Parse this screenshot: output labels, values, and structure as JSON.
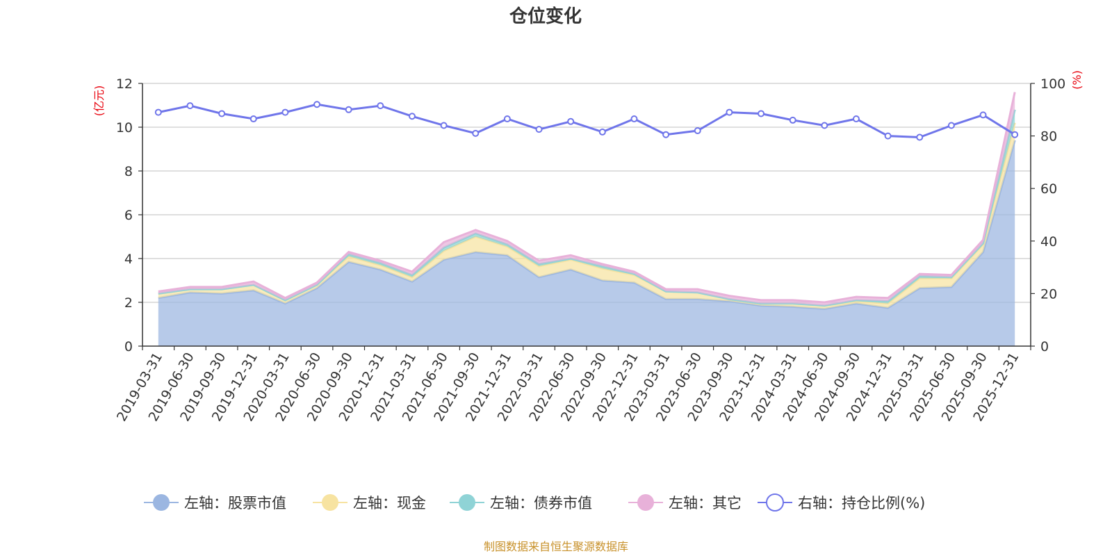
{
  "chart_data": {
    "type": "area",
    "title": "仓位变化",
    "left_axis": {
      "unit": "(亿元)",
      "ylim": [
        0,
        12
      ],
      "ticks": [
        0,
        2,
        4,
        6,
        8,
        10,
        12
      ]
    },
    "right_axis": {
      "unit": "(%)",
      "ylim": [
        0,
        100
      ],
      "ticks": [
        0,
        20,
        40,
        60,
        80,
        100
      ]
    },
    "categories": [
      "2019-03-31",
      "2019-06-30",
      "2019-09-30",
      "2019-12-31",
      "2020-03-31",
      "2020-06-30",
      "2020-09-30",
      "2020-12-31",
      "2021-03-31",
      "2021-06-30",
      "2021-09-30",
      "2021-12-31",
      "2022-03-31",
      "2022-06-30",
      "2022-09-30",
      "2022-12-31",
      "2023-03-31",
      "2023-06-30",
      "2023-09-30",
      "2023-12-31",
      "2024-03-31",
      "2024-06-30",
      "2024-09-30",
      "2024-12-31",
      "2025-03-31",
      "2025-06-30",
      "2025-09-30",
      "2025-12-31"
    ],
    "series": [
      {
        "name": "左轴：股票市值",
        "axis": "left",
        "stack": true,
        "color": "#9bb6e1",
        "values": [
          2.2,
          2.45,
          2.4,
          2.55,
          1.95,
          2.65,
          3.85,
          3.5,
          2.95,
          3.95,
          4.3,
          4.15,
          3.15,
          3.5,
          3.0,
          2.9,
          2.15,
          2.15,
          2.05,
          1.85,
          1.8,
          1.7,
          1.95,
          1.75,
          2.65,
          2.7,
          4.3,
          9.4
        ]
      },
      {
        "name": "左轴：现金",
        "axis": "left",
        "stack": true,
        "color": "#f7e3a1",
        "values": [
          0.2,
          0.15,
          0.2,
          0.25,
          0.15,
          0.15,
          0.25,
          0.2,
          0.2,
          0.4,
          0.7,
          0.4,
          0.5,
          0.45,
          0.55,
          0.35,
          0.35,
          0.3,
          0.1,
          0.1,
          0.15,
          0.15,
          0.1,
          0.2,
          0.45,
          0.4,
          0.35,
          0.8
        ]
      },
      {
        "name": "左轴：债券市值",
        "axis": "left",
        "stack": true,
        "color": "#8fd3d6",
        "values": [
          0.0,
          0.0,
          0.0,
          0.0,
          0.0,
          0.0,
          0.1,
          0.1,
          0.1,
          0.15,
          0.15,
          0.1,
          0.1,
          0.05,
          0.1,
          0.05,
          0.0,
          0.0,
          0.0,
          0.0,
          0.0,
          0.0,
          0.05,
          0.1,
          0.1,
          0.05,
          0.05,
          0.6
        ]
      },
      {
        "name": "左轴：其它",
        "axis": "left",
        "stack": true,
        "color": "#e8b1d9",
        "values": [
          0.1,
          0.1,
          0.1,
          0.15,
          0.1,
          0.1,
          0.1,
          0.1,
          0.15,
          0.25,
          0.15,
          0.15,
          0.15,
          0.15,
          0.1,
          0.1,
          0.1,
          0.15,
          0.15,
          0.15,
          0.15,
          0.15,
          0.15,
          0.15,
          0.1,
          0.1,
          0.15,
          0.8
        ]
      },
      {
        "name": "右轴：持仓比例(%)",
        "axis": "right",
        "type": "line",
        "color": "#6f75ea",
        "values": [
          89,
          91.5,
          88.5,
          86.5,
          89,
          92,
          90,
          91.5,
          87.5,
          84,
          81,
          86.5,
          82.5,
          85.5,
          81.5,
          86.5,
          80.5,
          82,
          89,
          88.5,
          86,
          84,
          86.5,
          80,
          79.5,
          84,
          88,
          80.5
        ]
      }
    ],
    "grid": true,
    "legend_position": "bottom",
    "source_note": "制图数据来自恒生聚源数据库"
  }
}
